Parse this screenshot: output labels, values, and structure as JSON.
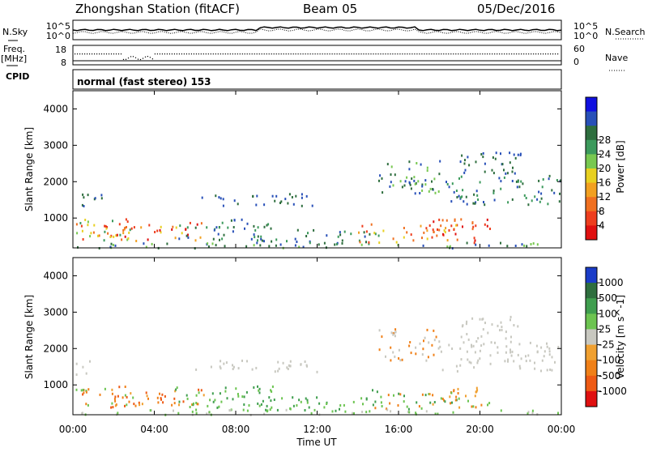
{
  "header": {
    "title": "Zhongshan Station (fitACF)",
    "beam": "Beam 05",
    "date": "05/Dec/2016"
  },
  "strips": {
    "nsky_label": "N.Sky",
    "nsky_ticks": [
      "10^5",
      "10^0"
    ],
    "nsearch_label": "N.Search",
    "nsearch_ticks": [
      "10^5",
      "10^0"
    ],
    "freq_label": "Freq.",
    "freq_unit": "[MHz]",
    "freq_ticks": [
      "18",
      "8"
    ],
    "nave_label": "Nave",
    "nave_ticks": [
      "60",
      "0"
    ],
    "cpid_label": "CPID",
    "cpid_text": "normal (fast stereo) 153"
  },
  "chart_data": [
    {
      "type": "heatmap",
      "panel": "power",
      "ylabel": "Slant Range [km]",
      "xlabel": "Time UT",
      "y_ticks": [
        "1000",
        "2000",
        "3000",
        "4000"
      ],
      "ylim": [
        180,
        4500
      ],
      "x_ticks": [
        "00:00",
        "04:00",
        "08:00",
        "12:00",
        "16:00",
        "20:00",
        "00:00"
      ],
      "colorbar": {
        "label": "Power [dB]",
        "ticks": [
          "4",
          "8",
          "12",
          "16",
          "20",
          "24",
          "28"
        ],
        "colors": [
          "#1010e0",
          "#2850b8",
          "#2e6e3e",
          "#3c9a5c",
          "#78c850",
          "#e8d020",
          "#f2a020",
          "#f07020",
          "#ee3e1e",
          "#e01010"
        ]
      }
    },
    {
      "type": "heatmap",
      "panel": "velocity",
      "ylabel": "Slant Range [km]",
      "xlabel": "Time UT",
      "y_ticks": [
        "1000",
        "2000",
        "3000",
        "4000"
      ],
      "ylim": [
        180,
        4500
      ],
      "x_ticks": [
        "00:00",
        "04:00",
        "08:00",
        "12:00",
        "16:00",
        "20:00",
        "00:00"
      ],
      "colorbar": {
        "label": "Velocity [m s^-1]",
        "ticks": [
          "1000",
          "500",
          "100",
          "25",
          "-25",
          "-100",
          "-500",
          "-1000"
        ],
        "colors": [
          "#1a3cc8",
          "#2e6e3e",
          "#3f9e4e",
          "#6cc450",
          "#c8c8c0",
          "#f0a030",
          "#f08018",
          "#ee5a14",
          "#e01010"
        ]
      }
    }
  ]
}
